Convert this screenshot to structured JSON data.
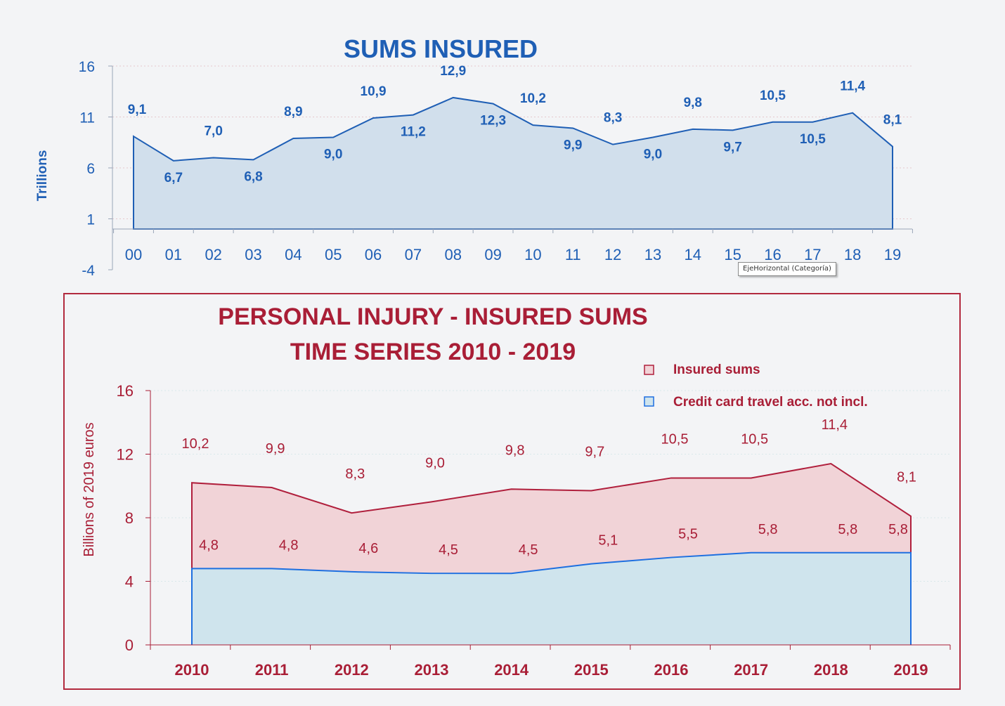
{
  "chart_data": [
    {
      "type": "area",
      "title": "SUMS INSURED",
      "ylabel": "Trillions",
      "xlabel": "",
      "ylim": [
        -4,
        16
      ],
      "yticks": [
        "16",
        "11",
        "6",
        "1",
        "-4"
      ],
      "categories": [
        "00",
        "01",
        "02",
        "03",
        "04",
        "05",
        "06",
        "07",
        "08",
        "09",
        "10",
        "11",
        "12",
        "13",
        "14",
        "15",
        "16",
        "17",
        "18",
        "19"
      ],
      "values": [
        9.1,
        6.7,
        7.0,
        6.8,
        8.9,
        9.0,
        10.9,
        11.2,
        12.9,
        12.3,
        10.2,
        9.9,
        8.3,
        9.0,
        9.8,
        9.7,
        10.5,
        10.5,
        11.4,
        8.1
      ],
      "data_labels": [
        "9,1",
        "6,7",
        "7,0",
        "6,8",
        "8,9",
        "9,0",
        "10,9",
        "11,2",
        "12,9",
        "12,3",
        "10,2",
        "9,9",
        "8,3",
        "9,0",
        "9,8",
        "9,7",
        "10,5",
        "10,5",
        "11,4",
        "8,1"
      ],
      "colors": {
        "line": "#1f5fb5",
        "fill": "#d1dfec",
        "text": "#1f5fb5"
      },
      "tooltip": "EjeHorizontal (Categoría)"
    },
    {
      "type": "area",
      "title_lines": [
        "PERSONAL INJURY - INSURED SUMS",
        "TIME SERIES 2010 - 2019"
      ],
      "ylabel": "Billions of 2019 euros",
      "xlabel": "",
      "ylim": [
        0,
        16
      ],
      "yticks": [
        "16",
        "12",
        "8",
        "4",
        "0"
      ],
      "categories": [
        "2010",
        "2011",
        "2012",
        "2013",
        "2014",
        "2015",
        "2016",
        "2017",
        "2018",
        "2019"
      ],
      "legend_position": "top-right",
      "series": [
        {
          "name": "Insured sums",
          "values": [
            10.2,
            9.9,
            8.3,
            9.0,
            9.8,
            9.7,
            10.5,
            10.5,
            11.4,
            8.1
          ],
          "data_labels": [
            "10,2",
            "9,9",
            "8,3",
            "9,0",
            "9,8",
            "9,7",
            "10,5",
            "10,5",
            "11,4",
            "8,1"
          ],
          "color": "#b01f3c",
          "fill": "#f1d3d7"
        },
        {
          "name": "Credit card travel acc. not incl.",
          "values": [
            4.8,
            4.8,
            4.6,
            4.5,
            4.5,
            5.1,
            5.5,
            5.8,
            5.8,
            5.8
          ],
          "data_labels": [
            "4,8",
            "4,8",
            "4,6",
            "4,5",
            "4,5",
            "5,1",
            "5,5",
            "5,8",
            "5,8",
            "5,8"
          ],
          "color": "#1e6fe0",
          "fill": "#cfe4ed"
        }
      ],
      "colors": {
        "text": "#a91e36",
        "frame": "#b22a3e"
      }
    }
  ]
}
